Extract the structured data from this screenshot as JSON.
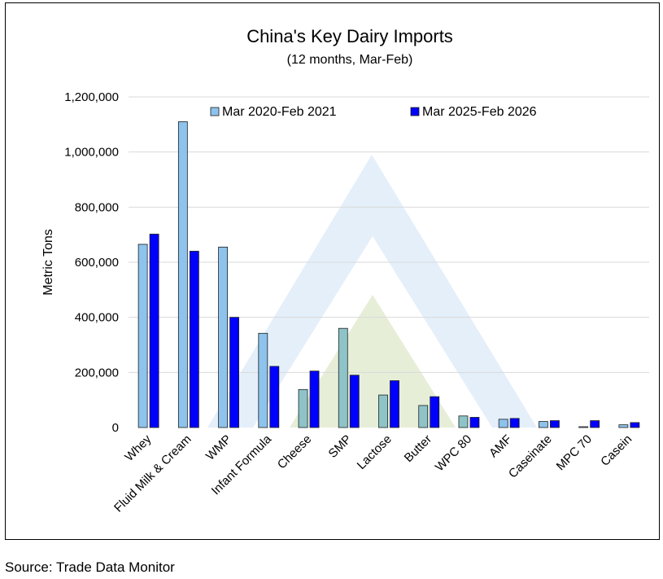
{
  "source_text": "Source: Trade Data Monitor",
  "colors": {
    "series_1_fill": "#8dc3ec",
    "series_1_fill_alt": "#8ec4c8",
    "series_2_fill": "#0000ff",
    "bar_stroke": "#1f1f1f",
    "gridline": "#d9d9d9",
    "watermark_blue": "#dbeaf8",
    "watermark_green": "#e2ebd1"
  },
  "chart_data": {
    "type": "bar",
    "title": "China's Key Dairy Imports",
    "subtitle": "(12 months, Mar-Feb)",
    "ylabel": "Metric Tons",
    "xlabel": "",
    "ylim": [
      0,
      1200000
    ],
    "y_ticks": [
      "0",
      "200,000",
      "400,000",
      "600,000",
      "800,000",
      "1,000,000",
      "1,200,000"
    ],
    "y_tick_values": [
      0,
      200000,
      400000,
      600000,
      800000,
      1000000,
      1200000
    ],
    "grid": true,
    "legend_position": "top",
    "categories": [
      "Whey",
      "Fluid Milk & Cream",
      "WMP",
      "Infant Formula",
      "Cheese",
      "SMP",
      "Lactose",
      "Butter",
      "WPC 80",
      "AMF",
      "Caseinate",
      "MPC 70",
      "Casein"
    ],
    "series": [
      {
        "name": "Mar 2020-Feb 2021",
        "values": [
          665000,
          1110000,
          655000,
          342000,
          138000,
          360000,
          118000,
          80000,
          42000,
          30000,
          22000,
          3000,
          10000
        ]
      },
      {
        "name": "Mar 2025-Feb 2026",
        "values": [
          702000,
          640000,
          400000,
          222000,
          205000,
          190000,
          170000,
          112000,
          37000,
          33000,
          25000,
          25000,
          18000
        ]
      }
    ]
  }
}
